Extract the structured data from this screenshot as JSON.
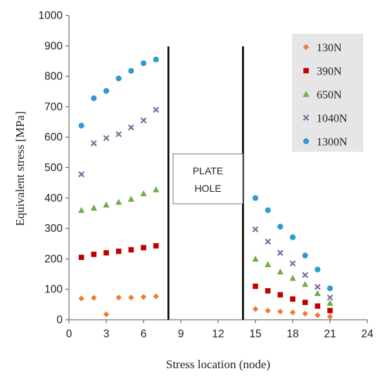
{
  "chart_data": {
    "type": "scatter",
    "xlabel": "Stress location (node)",
    "ylabel": "Equivalent stress [MPa]",
    "xlim": [
      0,
      24
    ],
    "ylim": [
      0,
      1000
    ],
    "xticks": [
      0,
      3,
      6,
      9,
      12,
      15,
      18,
      21,
      24
    ],
    "yticks": [
      0,
      100,
      200,
      300,
      400,
      500,
      600,
      700,
      800,
      900,
      1000
    ],
    "grid": false,
    "legend_position": "top-right",
    "annotation": {
      "text_lines": [
        "PLATE",
        "HOLE"
      ],
      "bounds_x": [
        8,
        14
      ]
    },
    "series": [
      {
        "name": "130N",
        "marker": "diamond",
        "color": "#ED7D31",
        "points": [
          [
            1,
            70
          ],
          [
            2,
            72
          ],
          [
            3,
            18
          ],
          [
            4,
            73
          ],
          [
            5,
            73
          ],
          [
            6,
            75
          ],
          [
            7,
            77
          ],
          [
            15,
            35
          ],
          [
            16,
            30
          ],
          [
            17,
            27
          ],
          [
            18,
            24
          ],
          [
            19,
            20
          ],
          [
            20,
            15
          ],
          [
            21,
            10
          ]
        ]
      },
      {
        "name": "390N",
        "marker": "square",
        "color": "#C00000",
        "points": [
          [
            1,
            205
          ],
          [
            2,
            215
          ],
          [
            3,
            220
          ],
          [
            4,
            225
          ],
          [
            5,
            230
          ],
          [
            6,
            237
          ],
          [
            7,
            243
          ],
          [
            15,
            110
          ],
          [
            16,
            95
          ],
          [
            17,
            82
          ],
          [
            18,
            68
          ],
          [
            19,
            57
          ],
          [
            20,
            45
          ],
          [
            21,
            30
          ]
        ]
      },
      {
        "name": "650N",
        "marker": "triangle",
        "color": "#70AD47",
        "points": [
          [
            1,
            360
          ],
          [
            2,
            368
          ],
          [
            3,
            378
          ],
          [
            4,
            387
          ],
          [
            5,
            397
          ],
          [
            6,
            415
          ],
          [
            7,
            428
          ],
          [
            15,
            200
          ],
          [
            16,
            182
          ],
          [
            17,
            158
          ],
          [
            18,
            137
          ],
          [
            19,
            117
          ],
          [
            20,
            87
          ],
          [
            21,
            55
          ]
        ]
      },
      {
        "name": "1040N",
        "marker": "x",
        "color": "#7F6B9E",
        "points": [
          [
            1,
            478
          ],
          [
            2,
            580
          ],
          [
            3,
            597
          ],
          [
            4,
            610
          ],
          [
            5,
            632
          ],
          [
            6,
            655
          ],
          [
            7,
            690
          ],
          [
            15,
            297
          ],
          [
            16,
            257
          ],
          [
            17,
            220
          ],
          [
            18,
            185
          ],
          [
            19,
            147
          ],
          [
            20,
            108
          ],
          [
            21,
            73
          ]
        ]
      },
      {
        "name": "1300N",
        "marker": "circle",
        "color": "#2E9ACD",
        "points": [
          [
            1,
            638
          ],
          [
            2,
            728
          ],
          [
            3,
            752
          ],
          [
            4,
            793
          ],
          [
            5,
            818
          ],
          [
            6,
            843
          ],
          [
            7,
            855
          ],
          [
            15,
            400
          ],
          [
            16,
            360
          ],
          [
            17,
            306
          ],
          [
            18,
            271
          ],
          [
            19,
            211
          ],
          [
            20,
            165
          ],
          [
            21,
            103
          ]
        ]
      }
    ]
  }
}
